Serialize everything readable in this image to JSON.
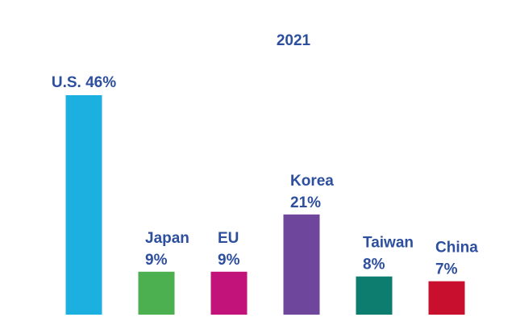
{
  "chart_data": {
    "type": "bar",
    "title": "2021",
    "categories": [
      "U.S.",
      "Japan",
      "EU",
      "Korea",
      "Taiwan",
      "China"
    ],
    "values": [
      46,
      9,
      9,
      21,
      8,
      7
    ],
    "unit": "%",
    "xlabel": "",
    "ylabel": "",
    "ylim": [
      0,
      46
    ],
    "grid": false,
    "legend": "none",
    "colors": [
      "#1bb0e0",
      "#4caf50",
      "#c2137a",
      "#6e479c",
      "#0d7d6f",
      "#c8102e"
    ],
    "label_color": "#2d4f9e"
  }
}
